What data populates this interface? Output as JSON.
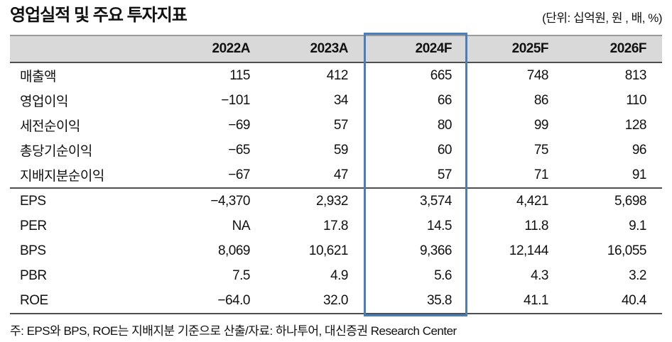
{
  "title": "영업실적 및 주요 투자지표",
  "units_note": "(단위: 십억원, 원 , 배, %)",
  "colors": {
    "highlight_border": "#4a7ebb",
    "header_bg": "#d9d9d9"
  },
  "table": {
    "columns": [
      "",
      "2022A",
      "2023A",
      "2024F",
      "2025F",
      "2026F"
    ],
    "highlight_column": "2024F",
    "sections": [
      {
        "rows": [
          {
            "label": "매출액",
            "values": [
              "115",
              "412",
              "665",
              "748",
              "813"
            ]
          },
          {
            "label": "영업이익",
            "values": [
              "−101",
              "34",
              "66",
              "86",
              "110"
            ]
          },
          {
            "label": "세전순이익",
            "values": [
              "−69",
              "57",
              "80",
              "99",
              "128"
            ]
          },
          {
            "label": "총당기순이익",
            "values": [
              "−65",
              "59",
              "60",
              "75",
              "96"
            ]
          },
          {
            "label": "지배지분순이익",
            "values": [
              "−67",
              "47",
              "57",
              "71",
              "91"
            ]
          }
        ]
      },
      {
        "rows": [
          {
            "label": "EPS",
            "values": [
              "−4,370",
              "2,932",
              "3,574",
              "4,421",
              "5,698"
            ]
          },
          {
            "label": "PER",
            "values": [
              "NA",
              "17.8",
              "14.5",
              "11.8",
              "9.1"
            ]
          },
          {
            "label": "BPS",
            "values": [
              "8,069",
              "10,621",
              "9,366",
              "12,144",
              "16,055"
            ]
          },
          {
            "label": "PBR",
            "values": [
              "7.5",
              "4.9",
              "5.6",
              "4.3",
              "3.2"
            ]
          },
          {
            "label": "ROE",
            "values": [
              "−64.0",
              "32.0",
              "35.8",
              "41.1",
              "40.4"
            ]
          }
        ]
      }
    ]
  },
  "footnote": "주: EPS와 BPS, ROE는 지배지분 기준으로 산출/자료: 하나투어, 대신증권 Research Center"
}
